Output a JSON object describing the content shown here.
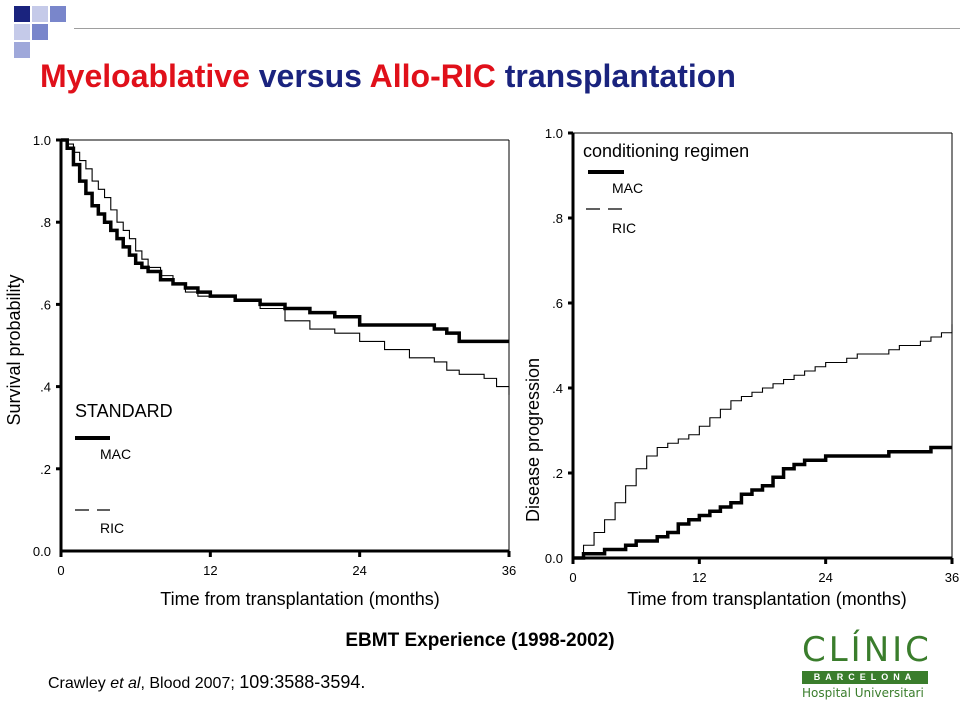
{
  "slide": {
    "title_part1": "Myeloablative",
    "title_part2": "versus",
    "title_part3": "Allo-RIC",
    "title_part4": "transplantation",
    "subtitle": "EBMT Experience (1998-2002)",
    "citation_authors": "Crawley ",
    "citation_etal": "et al",
    "citation_journal": ", Blood 2007; ",
    "citation_ref": "109:3588-3594.",
    "colors": {
      "title_red": "#e0101a",
      "title_blue": "#1a237e",
      "logo_green": "#3a7d2c"
    }
  },
  "logo": {
    "word": "CLÍNIC",
    "city": "BARCELONA",
    "hospital": "Hospital Universitari"
  },
  "chart_data": [
    {
      "type": "line",
      "step": true,
      "ylabel": "Survival probability",
      "xlabel": "Time from transplantation (months)",
      "xlim": [
        0,
        36
      ],
      "ylim": [
        0,
        1
      ],
      "xticks": [
        "0",
        "12",
        "24",
        "36"
      ],
      "yticks": [
        ".2",
        ".4",
        ".6",
        ".8",
        "1.0"
      ],
      "y_zero_label": "0.0",
      "legend_title": "STANDARD",
      "legend_position": "bottom-left",
      "grid": false,
      "series": [
        {
          "name": "MAC",
          "style": "thick",
          "x": [
            0,
            0.5,
            1,
            1.5,
            2,
            2.5,
            3,
            3.5,
            4,
            4.5,
            5,
            5.5,
            6,
            6.5,
            7,
            8,
            9,
            10,
            11,
            12,
            14,
            16,
            18,
            20,
            22,
            24,
            26,
            28,
            30,
            31,
            32,
            34,
            36
          ],
          "y": [
            1.0,
            0.98,
            0.94,
            0.9,
            0.87,
            0.84,
            0.82,
            0.8,
            0.78,
            0.76,
            0.74,
            0.72,
            0.7,
            0.69,
            0.68,
            0.66,
            0.65,
            0.64,
            0.63,
            0.62,
            0.61,
            0.6,
            0.59,
            0.58,
            0.57,
            0.55,
            0.55,
            0.55,
            0.54,
            0.53,
            0.51,
            0.51,
            0.51
          ]
        },
        {
          "name": "RIC",
          "style": "thin",
          "x": [
            0,
            0.5,
            1,
            1.5,
            2,
            2.5,
            3,
            3.5,
            4,
            4.5,
            5,
            5.5,
            6,
            6.5,
            7,
            8,
            9,
            10,
            11,
            12,
            14,
            16,
            18,
            20,
            22,
            24,
            26,
            28,
            30,
            31,
            32,
            34,
            35,
            36
          ],
          "y": [
            1.0,
            0.99,
            0.97,
            0.95,
            0.93,
            0.9,
            0.88,
            0.86,
            0.83,
            0.8,
            0.78,
            0.76,
            0.73,
            0.71,
            0.69,
            0.67,
            0.65,
            0.63,
            0.62,
            0.62,
            0.61,
            0.59,
            0.56,
            0.54,
            0.53,
            0.51,
            0.49,
            0.47,
            0.46,
            0.44,
            0.43,
            0.42,
            0.4,
            0.38
          ]
        }
      ]
    },
    {
      "type": "line",
      "step": true,
      "ylabel": "Disease progression",
      "xlabel": "Time from transplantation (months)",
      "xlim": [
        0,
        36
      ],
      "ylim": [
        0,
        1
      ],
      "xticks": [
        "0",
        "12",
        "24",
        "36"
      ],
      "yticks": [
        ".2",
        ".4",
        ".6",
        ".8",
        "1.0"
      ],
      "y_zero_label": "0.0",
      "legend_title": "conditioning regimen",
      "legend_position": "top-left",
      "grid": false,
      "series": [
        {
          "name": "MAC",
          "style": "thick",
          "x": [
            0,
            1,
            2,
            3,
            4,
            5,
            6,
            7,
            8,
            9,
            10,
            11,
            12,
            13,
            14,
            15,
            16,
            17,
            18,
            19,
            20,
            21,
            22,
            23,
            24,
            25,
            26,
            28,
            30,
            32,
            34,
            36
          ],
          "y": [
            0.0,
            0.01,
            0.01,
            0.02,
            0.02,
            0.03,
            0.04,
            0.04,
            0.05,
            0.06,
            0.08,
            0.09,
            0.1,
            0.11,
            0.12,
            0.13,
            0.15,
            0.16,
            0.17,
            0.19,
            0.21,
            0.22,
            0.23,
            0.23,
            0.24,
            0.24,
            0.24,
            0.24,
            0.25,
            0.25,
            0.26,
            0.26
          ]
        },
        {
          "name": "RIC",
          "style": "thin",
          "x": [
            0,
            1,
            2,
            3,
            4,
            5,
            6,
            7,
            8,
            9,
            10,
            11,
            12,
            13,
            14,
            15,
            16,
            17,
            18,
            19,
            20,
            21,
            22,
            23,
            24,
            25,
            26,
            27,
            28,
            29,
            30,
            31,
            32,
            33,
            34,
            35,
            36
          ],
          "y": [
            0.0,
            0.03,
            0.06,
            0.09,
            0.13,
            0.17,
            0.21,
            0.24,
            0.26,
            0.27,
            0.28,
            0.29,
            0.31,
            0.33,
            0.35,
            0.37,
            0.38,
            0.39,
            0.4,
            0.41,
            0.42,
            0.43,
            0.44,
            0.45,
            0.46,
            0.46,
            0.47,
            0.48,
            0.48,
            0.48,
            0.49,
            0.5,
            0.5,
            0.51,
            0.52,
            0.53,
            0.55
          ]
        }
      ]
    }
  ]
}
